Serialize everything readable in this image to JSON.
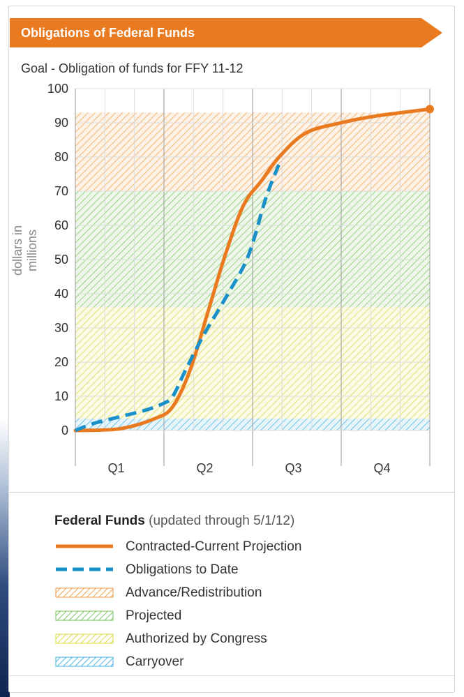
{
  "header": {
    "title": "Obligations of Federal Funds"
  },
  "chart_data": {
    "type": "line",
    "title": "Goal - Obligation of funds for FFY 11-12",
    "ylabel": "dollars in millions",
    "xlabel": "",
    "ylim": [
      0,
      100
    ],
    "yticks": [
      0,
      10,
      20,
      30,
      40,
      50,
      60,
      70,
      80,
      90,
      100
    ],
    "xlim": [
      0,
      4
    ],
    "categories": [
      "Q1",
      "Q2",
      "Q3",
      "Q4"
    ],
    "grid": true,
    "bands": [
      {
        "name": "Carryover",
        "from": 0,
        "to": 3.5,
        "xto": 4,
        "color": "#39aee0"
      },
      {
        "name": "Authorized by Congress",
        "from": 3.5,
        "to": 36,
        "xto": 4,
        "color": "#d6d837"
      },
      {
        "name": "Projected",
        "from": 36,
        "to": 70,
        "xto": 4,
        "color": "#72c252"
      },
      {
        "name": "Advance/Redistribution",
        "from": 70,
        "to": 93,
        "xto": 4,
        "color": "#ec9a3c"
      }
    ],
    "series": [
      {
        "name": "Contracted-Current Projection",
        "color": "#ea7a1f",
        "style": "solid",
        "x": [
          0,
          0.5,
          0.9,
          1.1,
          1.3,
          1.5,
          1.7,
          1.9,
          2.1,
          2.3,
          2.6,
          3.0,
          3.4,
          4.0
        ],
        "y": [
          0,
          0.5,
          3.5,
          7,
          18,
          35,
          52,
          66,
          73,
          80,
          87,
          90,
          92,
          94
        ]
      },
      {
        "name": "Obligations to Date",
        "color": "#1a90c8",
        "style": "dashed",
        "x": [
          0,
          0.2,
          0.5,
          0.8,
          1.0,
          1.1,
          1.25,
          1.45,
          1.7,
          1.95,
          2.15,
          2.3
        ],
        "y": [
          0,
          2,
          4,
          6,
          8,
          10,
          18,
          28,
          39,
          51,
          68,
          78
        ]
      }
    ]
  },
  "legend": {
    "title": "Federal Funds",
    "note": "(updated through 5/1/12)",
    "items": [
      {
        "label": "Contracted-Current Projection",
        "kind": "line",
        "color": "#ea7a1f"
      },
      {
        "label": "Obligations to Date",
        "kind": "dash",
        "color": "#1a90c8"
      },
      {
        "label": "Advance/Redistribution",
        "kind": "hatch",
        "color": "#ec9a3c"
      },
      {
        "label": "Projected",
        "kind": "hatch",
        "color": "#72c252"
      },
      {
        "label": "Authorized by Congress",
        "kind": "hatch",
        "color": "#d6d837"
      },
      {
        "label": "Carryover",
        "kind": "hatch",
        "color": "#39aee0"
      }
    ]
  }
}
